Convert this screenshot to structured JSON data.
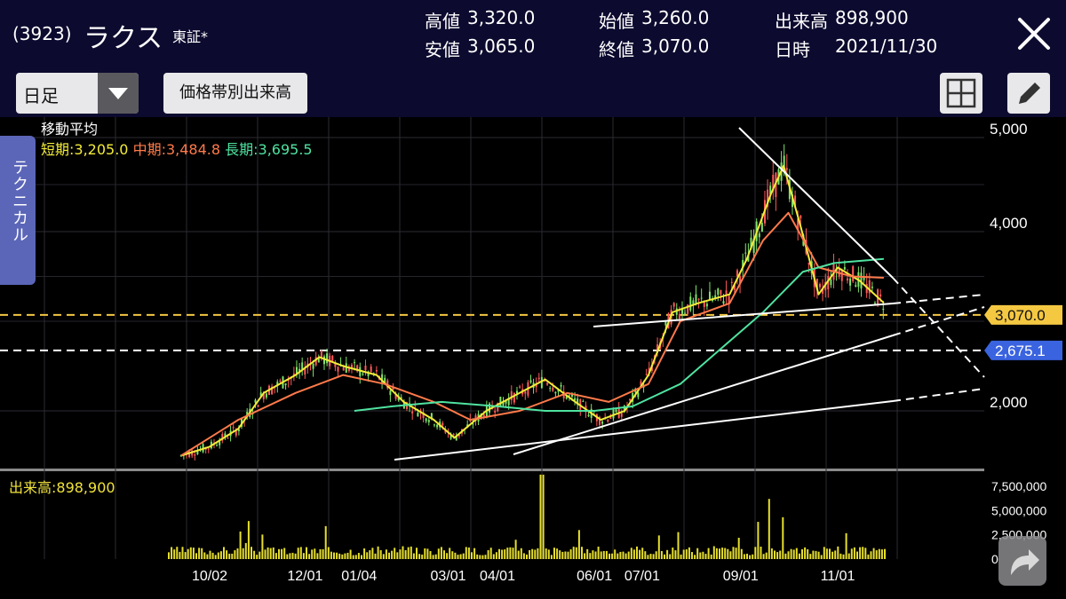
{
  "header": {
    "code": "(3923)",
    "name": "ラクス",
    "market": "東証*",
    "quote": {
      "high_label": "高値",
      "high": "3,320.0",
      "low_label": "安値",
      "low": "3,065.0",
      "open_label": "始値",
      "open": "3,260.0",
      "close_label": "終値",
      "close": "3,070.0",
      "volume_label": "出来高",
      "volume": "898,900",
      "date_label": "日時",
      "date": "2021/11/30"
    }
  },
  "toolbar": {
    "period": "日足",
    "volume_profile_label": "価格帯別出来高"
  },
  "side_tab": {
    "label": "テクニカル"
  },
  "indicator": {
    "title": "移動平均",
    "short_label": "短期:3,205.0",
    "mid_label": "中期:3,484.8",
    "long_label": "長期:3,695.5",
    "colors": {
      "short": "#f3ec3a",
      "mid": "#ff7a4a",
      "long": "#4fe3a0"
    }
  },
  "volume_panel": {
    "label": "出来高:898,900"
  },
  "chart_data": {
    "type": "line",
    "price_axis": {
      "ticks": [
        "5,000",
        "4,000",
        "2,000"
      ],
      "tick_values": [
        5000,
        4000,
        2000
      ]
    },
    "volume_axis": {
      "ticks": [
        "7,500,000",
        "5,000,000",
        "2,500,000",
        "0"
      ],
      "tick_values": [
        7500000,
        5000000,
        2500000,
        0
      ]
    },
    "x_ticks": [
      "10/02",
      "12/01",
      "01/04",
      "03/01",
      "04/01",
      "06/01",
      "07/01",
      "09/01",
      "11/01"
    ],
    "x_tick_dates": [
      "2020-10-02",
      "2020-12-01",
      "2021-01-04",
      "2021-03-01",
      "2021-04-01",
      "2021-06-01",
      "2021-07-01",
      "2021-09-01",
      "2021-11-01"
    ],
    "price_tags": [
      {
        "label": "3,070.0",
        "value": 3070,
        "color": "#f5c842"
      },
      {
        "label": "2,675.1",
        "value": 2675.1,
        "color": "#3a63e0"
      }
    ],
    "series": [
      {
        "color": "#f3ec3a",
        "x": [
          "2020-09-14",
          "2020-10-02",
          "2020-10-20",
          "2020-11-05",
          "2020-11-25",
          "2020-12-10",
          "2020-12-25",
          "2021-01-15",
          "2021-02-01",
          "2021-02-20",
          "2021-03-05",
          "2021-03-25",
          "2021-04-15",
          "2021-05-01",
          "2021-05-20",
          "2021-06-05",
          "2021-06-20",
          "2021-07-05",
          "2021-07-20",
          "2021-08-05",
          "2021-08-25",
          "2021-09-05",
          "2021-09-20",
          "2021-09-28",
          "2021-10-08",
          "2021-10-20",
          "2021-11-01",
          "2021-11-15",
          "2021-11-30"
        ],
        "y": [
          1500,
          1600,
          1800,
          2200,
          2400,
          2600,
          2500,
          2400,
          2100,
          1900,
          1700,
          2000,
          2200,
          2350,
          2100,
          1900,
          2000,
          2400,
          3100,
          3200,
          3300,
          3700,
          4400,
          4700,
          4100,
          3300,
          3600,
          3450,
          3205
        ]
      },
      {
        "color": "#ff7a4a",
        "x": [
          "2020-09-14",
          "2020-10-20",
          "2020-11-25",
          "2020-12-25",
          "2021-01-20",
          "2021-02-20",
          "2021-03-15",
          "2021-04-15",
          "2021-05-15",
          "2021-06-10",
          "2021-07-05",
          "2021-07-25",
          "2021-08-25",
          "2021-09-15",
          "2021-10-01",
          "2021-10-20",
          "2021-11-10",
          "2021-11-30"
        ],
        "y": [
          1500,
          1900,
          2200,
          2400,
          2300,
          2100,
          1900,
          2000,
          2200,
          2100,
          2300,
          3000,
          3200,
          3900,
          4200,
          3600,
          3500,
          3484.8
        ]
      },
      {
        "color": "#4fe3a0",
        "x": [
          "2021-01-01",
          "2021-01-25",
          "2021-02-25",
          "2021-04-01",
          "2021-05-01",
          "2021-06-01",
          "2021-06-25",
          "2021-07-25",
          "2021-08-20",
          "2021-09-15",
          "2021-10-10",
          "2021-10-30",
          "2021-11-20",
          "2021-11-30"
        ],
        "y": [
          2000,
          2050,
          2100,
          2050,
          2000,
          2000,
          2050,
          2300,
          2700,
          3100,
          3550,
          3650,
          3680,
          3695.5
        ]
      }
    ]
  }
}
